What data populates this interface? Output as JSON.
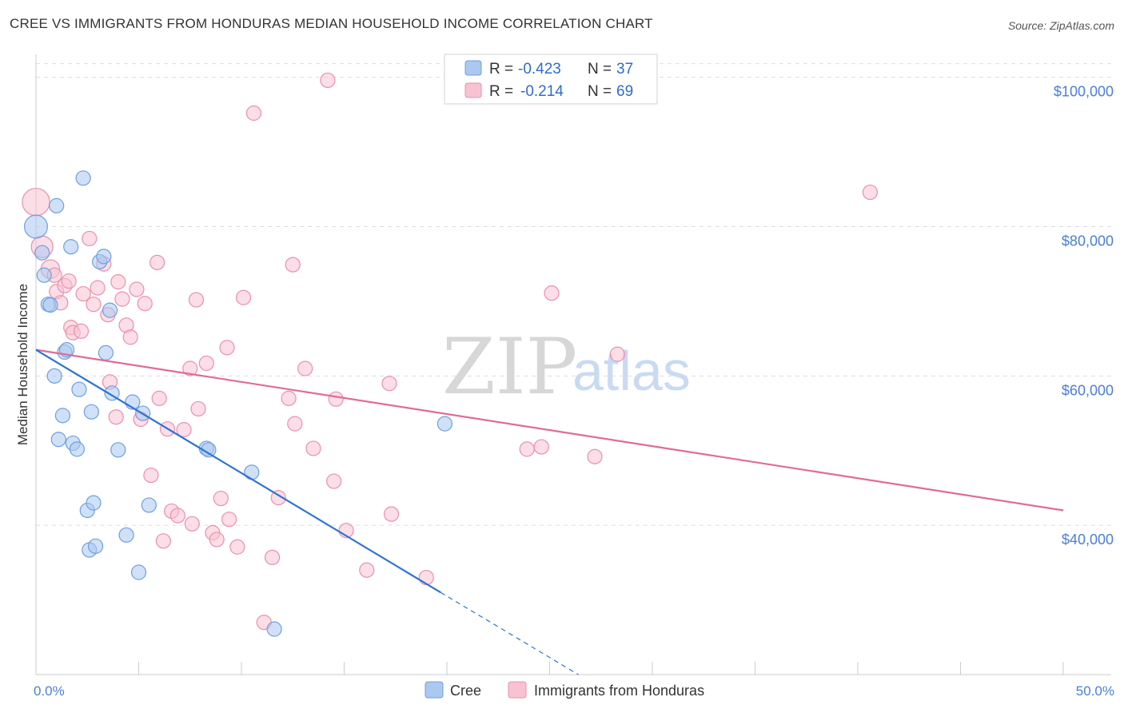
{
  "title": "CREE VS IMMIGRANTS FROM HONDURAS MEDIAN HOUSEHOLD INCOME CORRELATION CHART",
  "source": "Source: ZipAtlas.com",
  "watermark": {
    "zip": "ZIP",
    "atlas": "atlas"
  },
  "colors": {
    "cree_fill": "#aac8f0",
    "cree_stroke": "#6f9fe0",
    "cree_line": "#2e73d2",
    "hond_fill": "#f7c3d2",
    "hond_stroke": "#eb8fae",
    "hond_line": "#e06b98",
    "grid": "#dddddd",
    "tick_label": "#4a7fd4"
  },
  "legend": {
    "rows": [
      {
        "r_label": "R =",
        "r_value": "-0.423",
        "n_label": "N =",
        "n_value": "37"
      },
      {
        "r_label": "R =",
        "r_value": "-0.214",
        "n_label": "N =",
        "n_value": "69"
      }
    ]
  },
  "bottom_legend": {
    "cree": "Cree",
    "honduras": "Immigrants from Honduras"
  },
  "chart_data": {
    "type": "scatter",
    "xlabel": "",
    "ylabel": "Median Household Income",
    "xlim": [
      0,
      50
    ],
    "ylim": [
      20000,
      102000
    ],
    "x_tick_labels": [
      "0.0%",
      "50.0%"
    ],
    "y_ticks": [
      40000,
      60000,
      80000,
      100000
    ],
    "y_tick_labels": [
      "$40,000",
      "$60,000",
      "$80,000",
      "$100,000"
    ],
    "series": [
      {
        "name": "Cree",
        "r": -0.423,
        "n": 37,
        "trend": {
          "x0": 0,
          "y0": 63500,
          "x1": 19.7,
          "y1": 31000,
          "dash_x1": 26.4,
          "dash_y1": 20000
        },
        "points": [
          [
            0.0,
            80000,
            1.6
          ],
          [
            0.3,
            76500,
            1
          ],
          [
            0.4,
            73500,
            1
          ],
          [
            0.6,
            69600,
            1
          ],
          [
            0.7,
            69500,
            1
          ],
          [
            1.0,
            82800,
            1
          ],
          [
            1.4,
            63200,
            1
          ],
          [
            1.5,
            63500,
            1
          ],
          [
            0.9,
            60000,
            1
          ],
          [
            1.1,
            51500,
            1
          ],
          [
            1.3,
            54700,
            1
          ],
          [
            1.8,
            51000,
            1
          ],
          [
            2.0,
            50200,
            1
          ],
          [
            2.1,
            58200,
            1
          ],
          [
            2.3,
            86500,
            1
          ],
          [
            1.7,
            77300,
            1
          ],
          [
            2.7,
            55200,
            1
          ],
          [
            3.1,
            75300,
            1
          ],
          [
            3.3,
            76000,
            1
          ],
          [
            3.6,
            68800,
            1
          ],
          [
            3.4,
            63100,
            1
          ],
          [
            3.7,
            57700,
            1
          ],
          [
            4.0,
            50100,
            1
          ],
          [
            4.7,
            56500,
            1
          ],
          [
            5.2,
            55000,
            1
          ],
          [
            2.5,
            42000,
            1
          ],
          [
            2.8,
            43000,
            1
          ],
          [
            2.6,
            36700,
            1
          ],
          [
            2.9,
            37200,
            1
          ],
          [
            4.4,
            38700,
            1
          ],
          [
            5.5,
            42700,
            1
          ],
          [
            5.0,
            33700,
            1
          ],
          [
            8.3,
            50300,
            1
          ],
          [
            8.4,
            50100,
            1
          ],
          [
            10.5,
            47100,
            1
          ],
          [
            11.6,
            26100,
            1
          ],
          [
            19.9,
            53600,
            1
          ]
        ]
      },
      {
        "name": "Immigrants from Honduras",
        "r": -0.214,
        "n": 69,
        "trend": {
          "x0": 0,
          "y0": 63500,
          "x1": 50,
          "y1": 42000
        },
        "points": [
          [
            0.0,
            83300,
            1.9
          ],
          [
            0.3,
            77300,
            1.5
          ],
          [
            0.7,
            74300,
            1.3
          ],
          [
            0.9,
            73500,
            1
          ],
          [
            1.0,
            71300,
            1
          ],
          [
            1.2,
            69800,
            1
          ],
          [
            1.4,
            72100,
            1
          ],
          [
            1.6,
            72700,
            1
          ],
          [
            1.7,
            66500,
            1
          ],
          [
            1.8,
            65800,
            1
          ],
          [
            2.2,
            66000,
            1
          ],
          [
            2.3,
            71000,
            1
          ],
          [
            2.6,
            78400,
            1
          ],
          [
            2.8,
            69600,
            1
          ],
          [
            3.0,
            71800,
            1
          ],
          [
            3.3,
            75000,
            1
          ],
          [
            3.5,
            68200,
            1
          ],
          [
            3.6,
            59200,
            1
          ],
          [
            3.9,
            54500,
            1
          ],
          [
            4.0,
            72600,
            1
          ],
          [
            4.2,
            70300,
            1
          ],
          [
            4.4,
            66800,
            1
          ],
          [
            4.6,
            65200,
            1
          ],
          [
            4.9,
            71600,
            1
          ],
          [
            5.1,
            54200,
            1
          ],
          [
            5.3,
            69700,
            1
          ],
          [
            5.6,
            46700,
            1
          ],
          [
            5.9,
            75200,
            1
          ],
          [
            6.0,
            57000,
            1
          ],
          [
            6.2,
            37900,
            1
          ],
          [
            6.4,
            52900,
            1
          ],
          [
            6.6,
            41900,
            1
          ],
          [
            6.9,
            41300,
            1
          ],
          [
            7.2,
            52800,
            1
          ],
          [
            7.5,
            61000,
            1
          ],
          [
            7.6,
            40200,
            1
          ],
          [
            7.8,
            70200,
            1
          ],
          [
            7.9,
            55600,
            1
          ],
          [
            8.3,
            61700,
            1
          ],
          [
            8.6,
            39000,
            1
          ],
          [
            8.8,
            38100,
            1
          ],
          [
            9.0,
            43600,
            1
          ],
          [
            9.3,
            63800,
            1
          ],
          [
            9.4,
            40800,
            1
          ],
          [
            9.8,
            37100,
            1
          ],
          [
            10.1,
            70500,
            1
          ],
          [
            10.6,
            95200,
            1
          ],
          [
            11.1,
            27000,
            1
          ],
          [
            11.5,
            35700,
            1
          ],
          [
            11.8,
            43700,
            1
          ],
          [
            12.3,
            57000,
            1
          ],
          [
            12.5,
            74900,
            1
          ],
          [
            12.6,
            53600,
            1
          ],
          [
            13.1,
            61000,
            1
          ],
          [
            13.5,
            50300,
            1
          ],
          [
            14.2,
            99600,
            1
          ],
          [
            14.5,
            45900,
            1
          ],
          [
            14.6,
            56900,
            1
          ],
          [
            15.1,
            39300,
            1
          ],
          [
            16.1,
            34000,
            1
          ],
          [
            17.2,
            59000,
            1
          ],
          [
            17.3,
            41500,
            1
          ],
          [
            19.0,
            33000,
            1
          ],
          [
            23.9,
            50200,
            1
          ],
          [
            24.6,
            50500,
            1
          ],
          [
            25.1,
            71100,
            1
          ],
          [
            27.2,
            49200,
            1
          ],
          [
            28.3,
            62900,
            1
          ],
          [
            40.6,
            84600,
            1
          ]
        ]
      }
    ]
  }
}
